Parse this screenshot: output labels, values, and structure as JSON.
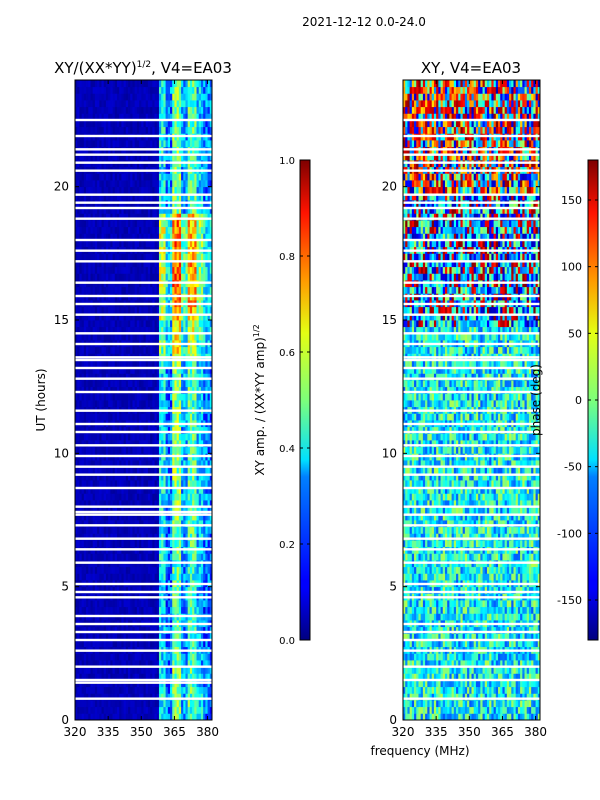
{
  "figure": {
    "suptitle": "2021-12-12 0.0-24.0",
    "xlabel": "frequency (MHz)"
  },
  "chart_data": [
    {
      "type": "heatmap",
      "title": "XY/(XX*YY)^{1/2}, V4=EA03",
      "title_main": "XY/(XX*YY)",
      "title_sup": "1/2",
      "title_tail": ", V4=EA03",
      "xlim": [
        320,
        382
      ],
      "ylim": [
        0,
        24
      ],
      "xticks": [
        320,
        335,
        350,
        365,
        380
      ],
      "yticks": [
        0,
        5,
        10,
        15,
        20
      ],
      "ylabel": "UT (hours)",
      "colorbar": {
        "label_main": "XY amp. / (XX*YY amp)",
        "label_sup": "1/2",
        "range": [
          0.0,
          1.0
        ],
        "ticks": [
          "0.0",
          "0.2",
          "0.4",
          "0.6",
          "0.8",
          "1.0"
        ],
        "tick_values": [
          0.0,
          0.2,
          0.4,
          0.6,
          0.8,
          1.0
        ]
      },
      "colormap": "jet",
      "description_of_data": "low values (~0.05) below 358 MHz; band 358-382 MHz shows values 0.3-0.9, peaking 15-19 UT",
      "columns": [
        {
          "from": 320,
          "to": 358,
          "value": 0.04
        },
        {
          "from": 358,
          "to": 361,
          "value": 0.45
        },
        {
          "from": 361,
          "to": 364,
          "value": 0.3
        },
        {
          "from": 364,
          "to": 368,
          "value": 0.6
        },
        {
          "from": 368,
          "to": 371,
          "value": 0.35
        },
        {
          "from": 371,
          "to": 375,
          "value": 0.55
        },
        {
          "from": 375,
          "to": 378,
          "value": 0.4
        },
        {
          "from": 378,
          "to": 382,
          "value": 0.3
        }
      ],
      "time_profile": [
        {
          "from": 0,
          "to": 2,
          "value": 0.55
        },
        {
          "from": 2,
          "to": 6,
          "value": 0.5
        },
        {
          "from": 6,
          "to": 13.5,
          "value": 0.55
        },
        {
          "from": 13.5,
          "to": 15,
          "value": 0.7
        },
        {
          "from": 15,
          "to": 19,
          "value": 0.85
        },
        {
          "from": 19,
          "to": 24,
          "value": 0.55
        }
      ],
      "flagged_ut_hours": [
        0.8,
        1.4,
        1.5,
        2.0,
        2.6,
        3.0,
        3.3,
        3.6,
        3.9,
        4.6,
        4.8,
        5.1,
        5.9,
        6.4,
        6.8,
        7.3,
        7.7,
        7.8,
        8.0,
        8.7,
        9.2,
        9.5,
        9.9,
        10.3,
        10.8,
        11.1,
        11.6,
        12.3,
        12.8,
        13.2,
        13.5,
        13.6,
        14.1,
        14.5,
        15.2,
        15.6,
        15.9,
        16.4,
        17.2,
        17.6,
        18.0,
        18.8,
        19.2,
        19.4,
        19.7,
        20.6,
        20.9,
        21.2,
        21.4,
        21.9,
        22.5
      ]
    },
    {
      "type": "heatmap",
      "title": "XY, V4=EA03",
      "xlim": [
        320,
        382
      ],
      "ylim": [
        0,
        24
      ],
      "xticks": [
        320,
        335,
        350,
        365,
        380
      ],
      "yticks": [
        0,
        5,
        10,
        15,
        20
      ],
      "colorbar": {
        "label": "phase (deg)",
        "range": [
          -180,
          180
        ],
        "ticks": [
          "-150",
          "-100",
          "-50",
          "0",
          "50",
          "100",
          "150"
        ],
        "tick_values": [
          -150,
          -100,
          -50,
          0,
          50,
          100,
          150
        ]
      },
      "colormap": "jet",
      "description_of_data": "noisy phase, mostly -80 to +20 deg; strong wrapping (+-180) above 15 UT and near 20-23 UT",
      "flagged_ut_hours": [
        0.8,
        1.5,
        2.0,
        2.6,
        3.0,
        3.3,
        3.6,
        4.6,
        4.8,
        5.1,
        5.9,
        6.4,
        6.8,
        7.3,
        7.7,
        8.0,
        8.7,
        9.2,
        9.5,
        9.9,
        10.3,
        10.8,
        11.1,
        11.6,
        12.3,
        12.8,
        13.2,
        13.5,
        13.6,
        14.1,
        14.5,
        15.2,
        15.6,
        15.9,
        16.4,
        17.2,
        17.6,
        18.0,
        18.8,
        19.2,
        19.4,
        19.7,
        20.6,
        20.9,
        21.2,
        21.4,
        21.9,
        22.5
      ]
    }
  ]
}
